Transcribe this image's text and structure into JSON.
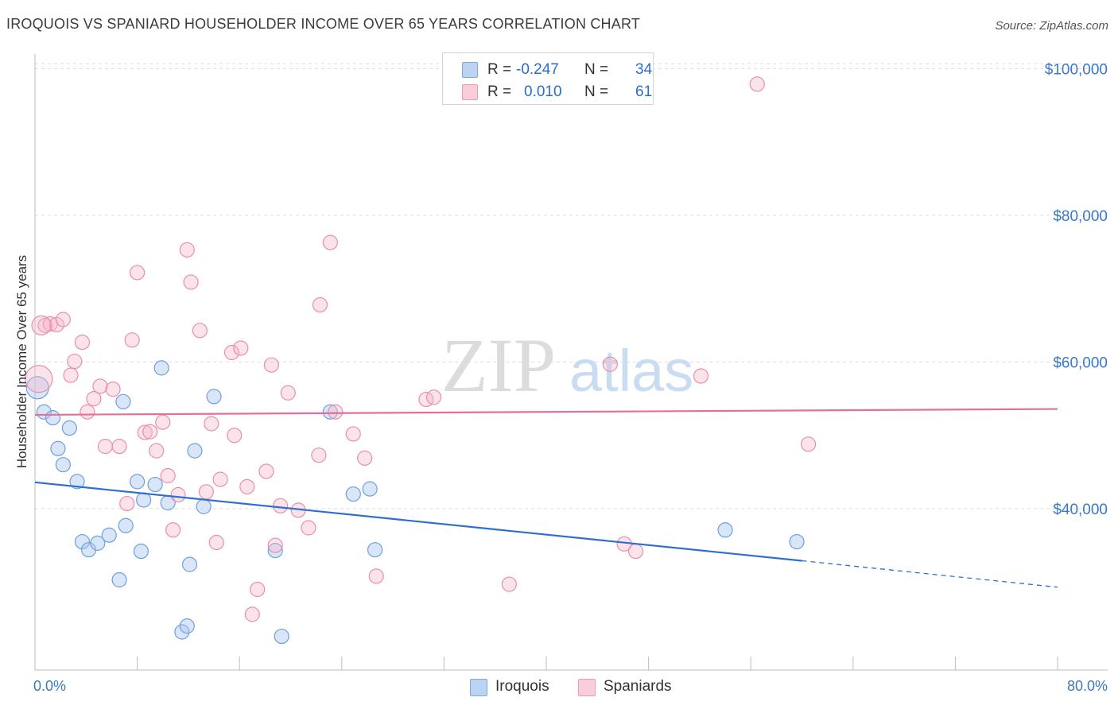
{
  "title": "IROQUOIS VS SPANIARD HOUSEHOLDER INCOME OVER 65 YEARS CORRELATION CHART",
  "source": "Source: ZipAtlas.com",
  "watermark": {
    "zip": "ZIP",
    "atlas": "atlas"
  },
  "legend": {
    "iroquois": {
      "r_label": "R =",
      "r_value": "-0.247",
      "n_label": "N =",
      "n_value": "34"
    },
    "spaniards": {
      "r_label": "R =",
      "r_value": "0.010",
      "n_label": "N =",
      "n_value": "61"
    }
  },
  "bottom_legend": {
    "iroquois": "Iroquois",
    "spaniards": "Spaniards"
  },
  "chart_data": {
    "type": "scatter",
    "title": "IROQUOIS VS SPANIARD HOUSEHOLDER INCOME OVER 65 YEARS CORRELATION CHART",
    "xlabel": "",
    "ylabel": "Householder Income Over 65 years",
    "x_tick_labels": [
      "0.0%",
      "80.0%"
    ],
    "xlim": [
      0,
      80
    ],
    "ylim": [
      18000,
      102000
    ],
    "y_ticks": [
      {
        "value": 100000,
        "label": "$100,000"
      },
      {
        "value": 80000,
        "label": "$80,000"
      },
      {
        "value": 60000,
        "label": "$60,000"
      },
      {
        "value": 40000,
        "label": "$40,000"
      }
    ],
    "grid": true,
    "colors": {
      "iroquois": "#a9c8f0",
      "iroquois_line": "#2d6fd1",
      "spaniards": "#f5b8cb",
      "spaniards_line": "#e56f96"
    },
    "series": [
      {
        "name": "Iroquois",
        "color": "#a9c8f0",
        "trend": {
          "x": [
            0,
            60
          ],
          "y": [
            43600,
            32900
          ],
          "dashed_to_x": 80,
          "dashed_y": 29300
        },
        "points": [
          [
            0.2,
            56500
          ],
          [
            0.7,
            53200
          ],
          [
            1.4,
            52400
          ],
          [
            2.7,
            51000
          ],
          [
            1.8,
            48200
          ],
          [
            2.2,
            46000
          ],
          [
            3.3,
            43700
          ],
          [
            3.7,
            35500
          ],
          [
            4.2,
            34400
          ],
          [
            4.9,
            35300
          ],
          [
            5.8,
            36400
          ],
          [
            6.6,
            30300
          ],
          [
            7.1,
            37700
          ],
          [
            8.0,
            43700
          ],
          [
            8.3,
            34200
          ],
          [
            8.5,
            41200
          ],
          [
            9.4,
            43300
          ],
          [
            9.9,
            59200
          ],
          [
            10.4,
            40800
          ],
          [
            11.5,
            23200
          ],
          [
            11.9,
            24000
          ],
          [
            12.1,
            32400
          ],
          [
            12.5,
            47900
          ],
          [
            13.2,
            40300
          ],
          [
            14.0,
            55300
          ],
          [
            6.9,
            54600
          ],
          [
            18.8,
            34300
          ],
          [
            19.3,
            22600
          ],
          [
            23.1,
            53200
          ],
          [
            24.9,
            42000
          ],
          [
            26.2,
            42700
          ],
          [
            26.6,
            34400
          ],
          [
            54.0,
            37100
          ],
          [
            59.6,
            35500
          ]
        ]
      },
      {
        "name": "Spaniards",
        "color": "#f5b8cb",
        "trend": {
          "x": [
            0,
            80
          ],
          "y": [
            52800,
            53600
          ]
        },
        "points": [
          [
            0.3,
            57700
          ],
          [
            0.8,
            65000
          ],
          [
            1.2,
            65200
          ],
          [
            1.7,
            65100
          ],
          [
            2.2,
            65800
          ],
          [
            2.8,
            58200
          ],
          [
            3.1,
            60100
          ],
          [
            3.7,
            62700
          ],
          [
            4.1,
            53200
          ],
          [
            4.6,
            55000
          ],
          [
            5.1,
            56700
          ],
          [
            5.5,
            48500
          ],
          [
            6.1,
            56300
          ],
          [
            6.6,
            48500
          ],
          [
            7.2,
            40700
          ],
          [
            7.6,
            63000
          ],
          [
            8.0,
            72200
          ],
          [
            8.6,
            50400
          ],
          [
            9.0,
            50500
          ],
          [
            9.5,
            47900
          ],
          [
            10.0,
            51800
          ],
          [
            10.4,
            44500
          ],
          [
            10.8,
            37100
          ],
          [
            11.2,
            41900
          ],
          [
            11.9,
            75300
          ],
          [
            12.2,
            70900
          ],
          [
            12.9,
            64300
          ],
          [
            13.4,
            42300
          ],
          [
            13.8,
            51600
          ],
          [
            14.2,
            35400
          ],
          [
            14.5,
            44000
          ],
          [
            15.4,
            61300
          ],
          [
            15.6,
            50000
          ],
          [
            16.1,
            61900
          ],
          [
            16.6,
            43000
          ],
          [
            17.0,
            25600
          ],
          [
            17.4,
            29000
          ],
          [
            18.1,
            45100
          ],
          [
            18.5,
            59600
          ],
          [
            18.8,
            35000
          ],
          [
            19.2,
            40400
          ],
          [
            19.8,
            55800
          ],
          [
            20.6,
            39800
          ],
          [
            21.4,
            37400
          ],
          [
            22.2,
            47300
          ],
          [
            22.3,
            67800
          ],
          [
            23.1,
            76300
          ],
          [
            23.5,
            53200
          ],
          [
            24.9,
            50200
          ],
          [
            25.8,
            46900
          ],
          [
            26.7,
            30800
          ],
          [
            30.6,
            54900
          ],
          [
            31.2,
            55200
          ],
          [
            37.1,
            29700
          ],
          [
            45.0,
            59700
          ],
          [
            46.1,
            35200
          ],
          [
            47.0,
            34200
          ],
          [
            52.1,
            58100
          ],
          [
            56.5,
            97900
          ],
          [
            60.5,
            48800
          ],
          [
            0.5,
            65000
          ]
        ]
      }
    ]
  }
}
